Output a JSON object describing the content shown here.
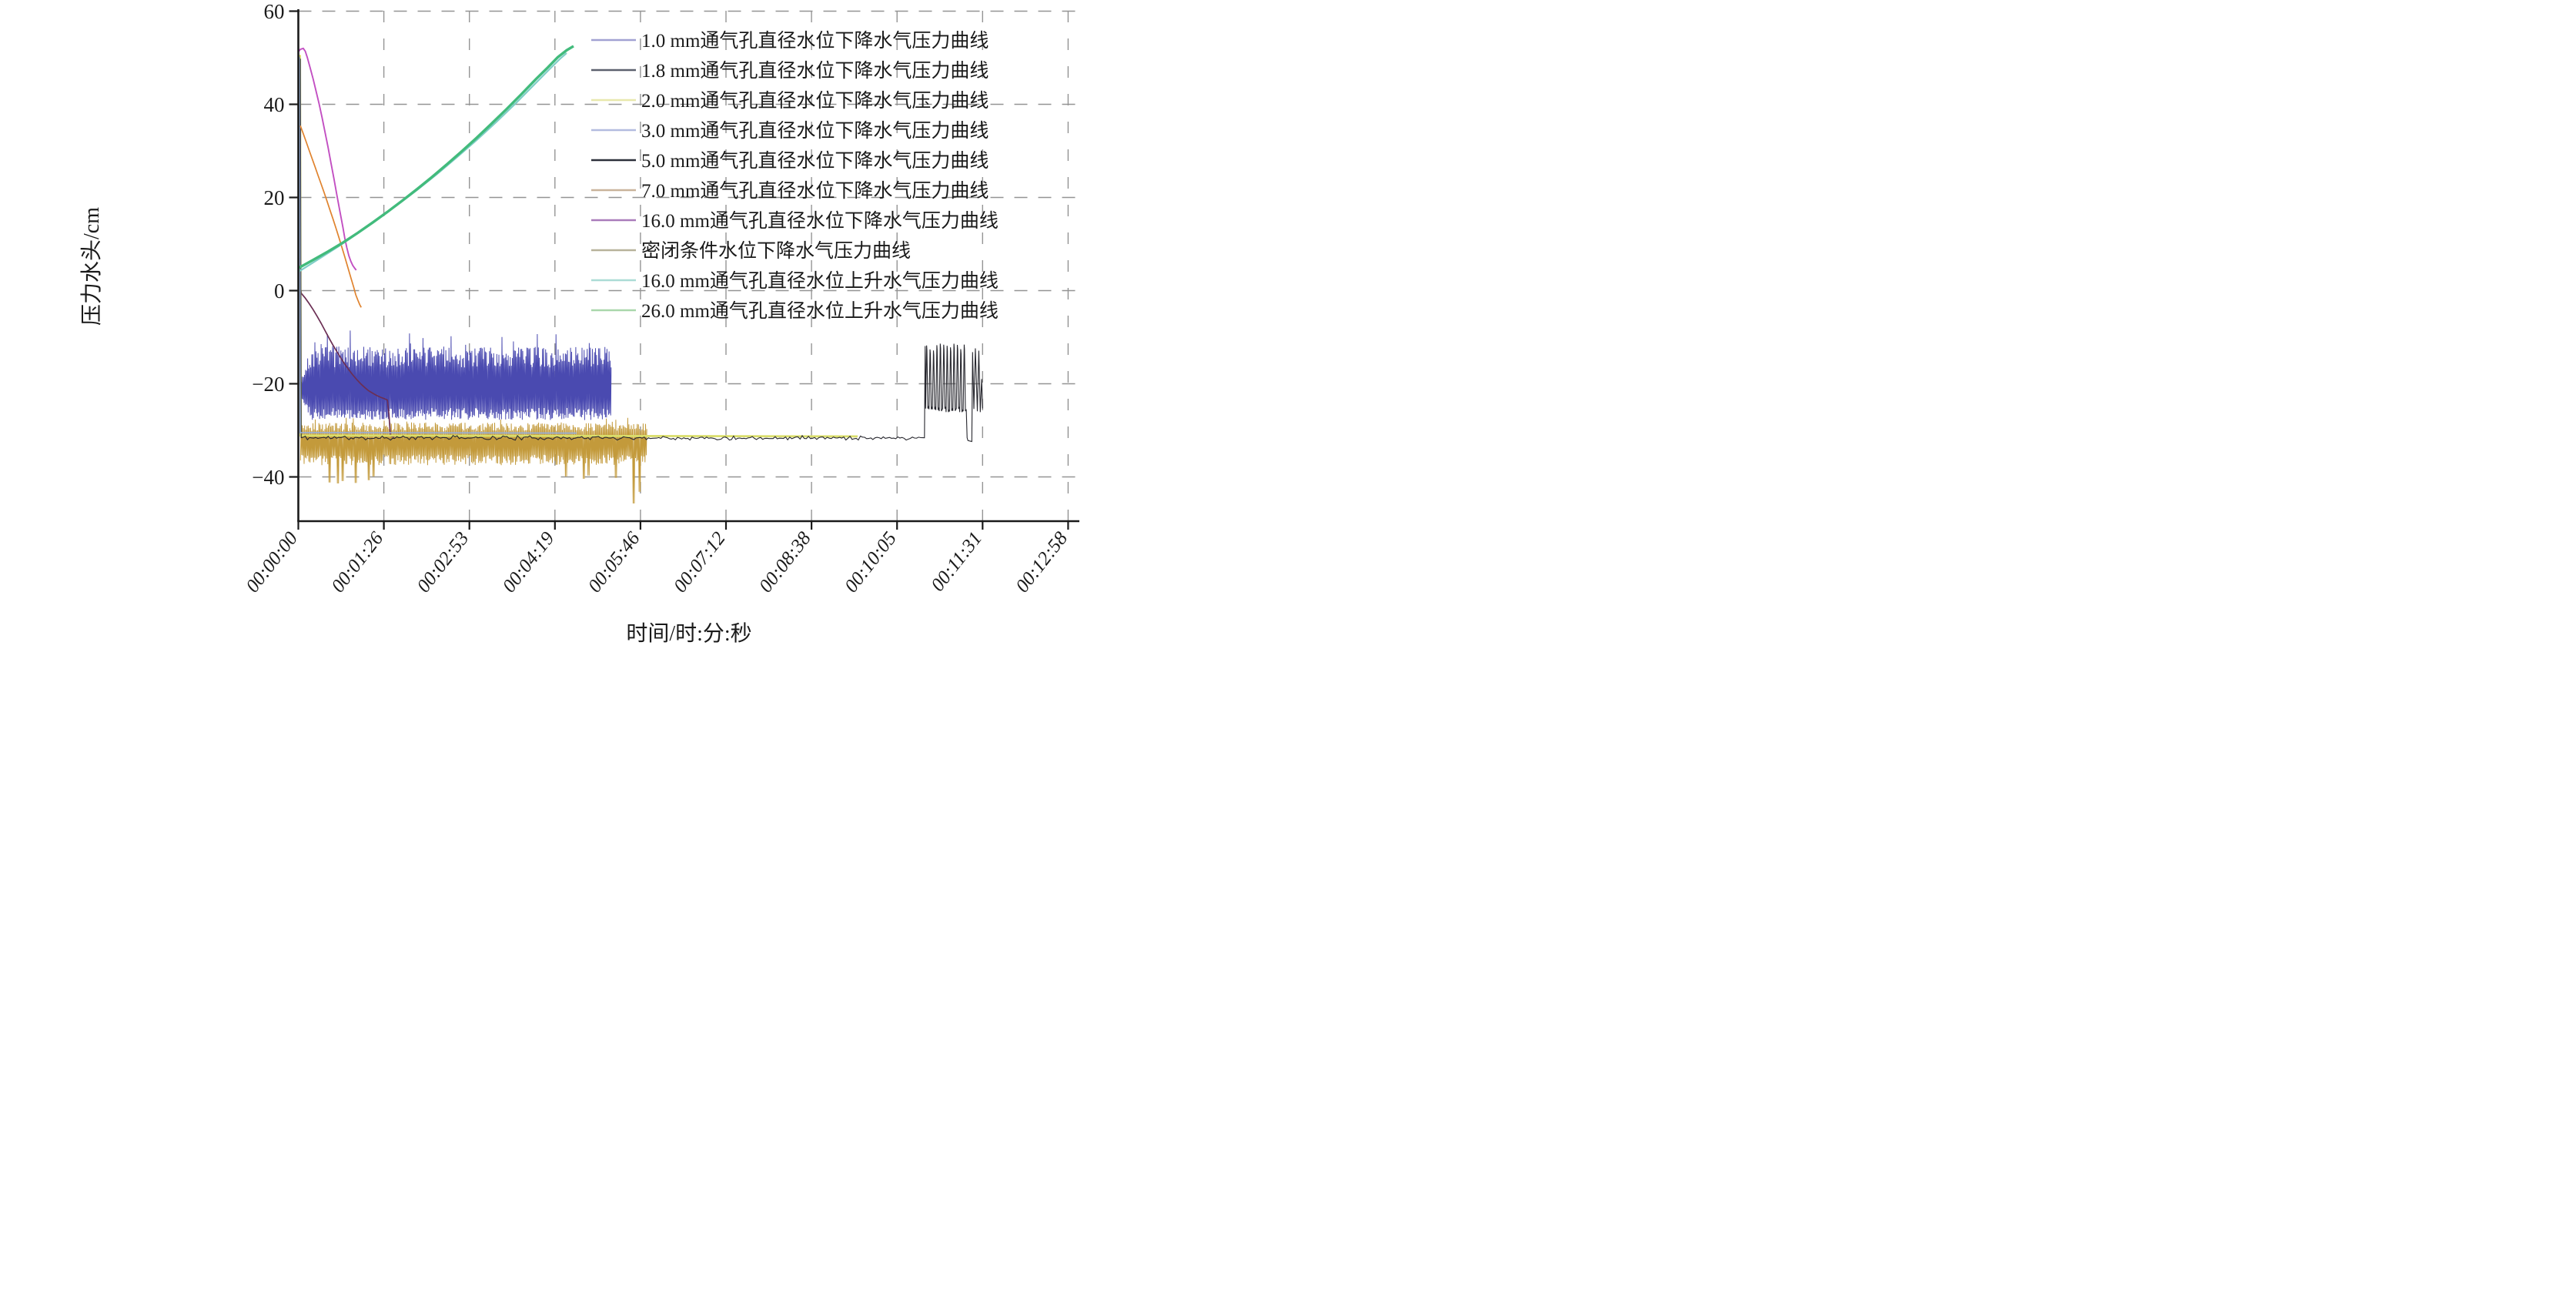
{
  "chart_data": {
    "type": "line",
    "title": "",
    "xlabel": "时间/时:分:秒",
    "ylabel": "压力水头/cm",
    "x_tick_seconds": [
      0,
      86.4,
      172.8,
      259.2,
      345.6,
      432,
      518.4,
      604.8,
      691.2,
      777.6
    ],
    "x_tick_labels": [
      "00:00:00",
      "00:01:26",
      "00:02:53",
      "00:04:19",
      "00:05:46",
      "00:07:12",
      "00:08:38",
      "00:10:05",
      "00:11:31",
      "00:12:58"
    ],
    "y_ticks": [
      60,
      40,
      20,
      0,
      -20,
      -40
    ],
    "y_tick_labels": [
      "60",
      "40",
      "20",
      "0",
      "−20",
      "−40"
    ],
    "ylim": [
      -48,
      62
    ],
    "xlim_seconds": [
      0,
      790
    ],
    "grid": "dashed-gray",
    "legend_position": "upper-right-inside",
    "grid_color": "#949494",
    "axis_color": "#1a1a1a",
    "series": [
      {
        "name": "1.0 mm通气孔直径水位下降水气压力曲线",
        "color": "#4a4ab0",
        "legend_color": "#a2a2d2",
        "width": 1.0,
        "description": "oscillating band, body -25..-13 cm, spikes -28..-9.5 cm, from 0 to ~00:05:16",
        "segments": [
          {
            "kind": "spike_band",
            "t0": 2.6,
            "t1": 316,
            "step": 1.05,
            "seed": 7,
            "bottom_base": -25.2,
            "bottom_var": 2.6,
            "top_base": -16.5,
            "top_var": 4.5,
            "tall_prob": 0.08,
            "tall_extra": 3.5,
            "ramp_until": 13,
            "ramp_center": -21
          }
        ]
      },
      {
        "name": "1.8 mm通气孔直径水位下降水气压力曲线",
        "color": "#6b2f54",
        "legend_color": "#5c616e",
        "width": 1.7,
        "description": "staircase descent 0 to -23 cm over ~90 s, then drop to -31.5 cm",
        "segments": [
          {
            "kind": "points",
            "points": [
              [
                1.3,
                7
              ],
              [
                1.9,
                0.8
              ],
              [
                3,
                -0.6
              ],
              [
                7,
                -1.6
              ],
              [
                11,
                -2.8
              ],
              [
                15,
                -4.1
              ],
              [
                19,
                -5.5
              ],
              [
                23,
                -7
              ],
              [
                27,
                -8.6
              ],
              [
                31,
                -10.2
              ],
              [
                35,
                -11.7
              ],
              [
                39,
                -13.1
              ],
              [
                43,
                -14.5
              ],
              [
                47,
                -15.8
              ],
              [
                51,
                -17
              ],
              [
                55,
                -18.1
              ],
              [
                59,
                -19.1
              ],
              [
                63,
                -20
              ],
              [
                67,
                -20.8
              ],
              [
                71,
                -21.5
              ],
              [
                75,
                -22
              ],
              [
                79,
                -22.5
              ],
              [
                83,
                -22.9
              ],
              [
                87,
                -23.2
              ],
              [
                90,
                -23.5
              ],
              [
                91.5,
                -26.5
              ],
              [
                93,
                -31.2
              ],
              [
                97,
                -31.5
              ]
            ]
          }
        ]
      },
      {
        "name": "2.0 mm通气孔直径水位下降水气压力曲线",
        "color": "#dade6b",
        "legend_color": "#e8e8ac",
        "width": 2.8,
        "description": "instant drop from ~50 cm to -31.3 cm, flat until ~00:09:25",
        "segments": [
          {
            "kind": "points",
            "points": [
              [
                1.6,
                50.6
              ],
              [
                2.4,
                -31.1
              ],
              [
                565,
                -31.3
              ]
            ]
          }
        ]
      },
      {
        "name": "3.0 mm通气孔直径水位下降水气压力曲线",
        "color": "#96add9",
        "legend_color": "#b3bcdf",
        "width": 1.7,
        "description": "instant drop from ~50 cm to -30.6 cm, flat until ~00:04:41",
        "segments": [
          {
            "kind": "points",
            "points": [
              [
                1.1,
                50.2
              ],
              [
                1.9,
                -30.5
              ],
              [
                281,
                -30.6
              ]
            ]
          }
        ]
      },
      {
        "name": "5.0 mm通气孔直径水位下降水气压力曲线",
        "color": "#27272e",
        "legend_color": "#2c303a",
        "width": 1.1,
        "description": "instant drop to -31.6 cm, noisy flat until ~00:10:33, then oscillation burst -26..-12 cm with dip to -32 cm, ends ~00:11:31",
        "segments": [
          {
            "kind": "points",
            "points": [
              [
                2.1,
                49.8
              ],
              [
                2.9,
                -31.5
              ]
            ]
          },
          {
            "kind": "jitter_line",
            "t0": 2.9,
            "t1": 632.5,
            "step": 2.1,
            "value": -31.6,
            "jitter": 0.5,
            "seed": 11
          },
          {
            "kind": "points",
            "points": [
              [
                632.5,
                -31.6
              ],
              [
                633.2,
                -11.9
              ]
            ]
          },
          {
            "kind": "square_osc",
            "t0": 633.2,
            "t1": 674.8,
            "period": 3.45,
            "top": -12.3,
            "top_var": 1.8,
            "bottom": -25.6,
            "bottom_var": 1.0,
            "seed": 5
          },
          {
            "kind": "points",
            "points": [
              [
                674.8,
                -26
              ],
              [
                675.6,
                -31.6
              ],
              [
                676.4,
                -32.2
              ],
              [
                680.3,
                -32.4
              ],
              [
                681.1,
                -13.2
              ],
              [
                682.4,
                -25.4
              ],
              [
                683.9,
                -12.4
              ],
              [
                685.9,
                -25.9
              ],
              [
                687.4,
                -12.9
              ],
              [
                688.9,
                -26.1
              ],
              [
                690.3,
                -19
              ],
              [
                691.3,
                -25.3
              ]
            ]
          }
        ]
      },
      {
        "name": "7.0 mm通气孔直径水位下降水气压力曲线",
        "color": "#e0832e",
        "legend_color": "#c9b39b",
        "width": 1.7,
        "description": "descent from ~35 cm to -3.6 cm over ~64 s",
        "segments": [
          {
            "kind": "points",
            "points": [
              [
                2,
                35.4
              ],
              [
                5,
                33.7
              ],
              [
                8,
                31.9
              ],
              [
                11,
                30.1
              ],
              [
                14,
                28.3
              ],
              [
                17,
                26.5
              ],
              [
                20,
                24.7
              ],
              [
                23,
                22.9
              ],
              [
                26,
                21.1
              ],
              [
                29,
                19.2
              ],
              [
                32,
                17.3
              ],
              [
                35,
                15.4
              ],
              [
                38,
                13.4
              ],
              [
                41,
                11.4
              ],
              [
                44,
                9.3
              ],
              [
                47,
                7.2
              ],
              [
                50,
                5
              ],
              [
                53,
                2.8
              ],
              [
                56,
                0.7
              ],
              [
                58,
                -0.9
              ],
              [
                60,
                -2
              ],
              [
                62,
                -3
              ],
              [
                63.5,
                -3.6
              ]
            ]
          }
        ]
      },
      {
        "name": "16.0 mm通气孔直径水位下降水气压力曲线",
        "color": "#c24fc2",
        "legend_color": "#a97cba",
        "width": 1.9,
        "description": "starts ~52 cm, descends to ~4.4 cm by ~58 s",
        "segments": [
          {
            "kind": "points",
            "points": [
              [
                0.6,
                51.4
              ],
              [
                2,
                51.8
              ],
              [
                5,
                52
              ],
              [
                7,
                51.4
              ],
              [
                9,
                50.1
              ],
              [
                12,
                47.8
              ],
              [
                15,
                45.4
              ],
              [
                18,
                42.8
              ],
              [
                21,
                40.1
              ],
              [
                24,
                37.1
              ],
              [
                27,
                34
              ],
              [
                30,
                30.8
              ],
              [
                33,
                27.4
              ],
              [
                36,
                24
              ],
              [
                39,
                20.5
              ],
              [
                42,
                17
              ],
              [
                45,
                13.6
              ],
              [
                47,
                11.2
              ],
              [
                49,
                9.2
              ],
              [
                51,
                7.5
              ],
              [
                53,
                6.3
              ],
              [
                55,
                5.4
              ],
              [
                57,
                4.8
              ],
              [
                58.5,
                4.4
              ]
            ]
          }
        ]
      },
      {
        "name": "密闭条件水位下降水气压力曲线",
        "color": "#c39a3b",
        "legend_color": "#b7b29a",
        "width": 1.0,
        "description": "oscillating band, body -37..-28.5 cm, spikes to -41 cm (30-76 s) and -45.7 cm (~00:05:39), from 0 to ~00:05:52",
        "segments": [
          {
            "kind": "spike_band",
            "t0": 2.2,
            "t1": 351.5,
            "step": 1.2,
            "seed": 13,
            "bottom_base": -35.2,
            "bottom_var": 2.3,
            "top_base": -30.2,
            "top_var": 1.9,
            "tall_prob": 0.05,
            "tall_extra": 1.2,
            "deep": [
              [
                31,
                -41.2
              ],
              [
                40.5,
                -41.4
              ],
              [
                45,
                -40.9
              ],
              [
                57.5,
                -41.3
              ],
              [
                71.5,
                -40.7
              ],
              [
                76,
                -39.9
              ],
              [
                270,
                -39.9
              ],
              [
                288,
                -40.4
              ],
              [
                293,
                -39.7
              ],
              [
                320.5,
                -40.2
              ],
              [
                339,
                -45.7
              ],
              [
                345,
                -43.2
              ]
            ]
          }
        ]
      },
      {
        "name": "16.0 mm通气孔直径水位上升水气压力曲线",
        "color": "#7fcdc7",
        "legend_color": "#abdcd6",
        "width": 2.2,
        "description": "rises from ~4 cm to ~51 cm between 0 and ~00:04:31",
        "segments": [
          {
            "kind": "points",
            "points": [
              [
                0.6,
                4.1
              ],
              [
                20,
                6.7
              ],
              [
                40,
                9.4
              ],
              [
                60,
                12.3
              ],
              [
                80,
                15.3
              ],
              [
                100,
                18.4
              ],
              [
                120,
                21.6
              ],
              [
                140,
                25
              ],
              [
                160,
                28.6
              ],
              [
                180,
                32.3
              ],
              [
                200,
                36.2
              ],
              [
                220,
                40.3
              ],
              [
                240,
                44.6
              ],
              [
                254,
                47.6
              ],
              [
                264,
                49.7
              ],
              [
                271,
                51
              ]
            ]
          }
        ]
      },
      {
        "name": "26.0 mm通气孔直径水位上升水气压力曲线",
        "color": "#42bb7c",
        "legend_color": "#a9d7ab",
        "width": 3.4,
        "description": "rises from ~5 cm to ~52.5 cm between 0 and ~00:04:38",
        "segments": [
          {
            "kind": "points",
            "points": [
              [
                0.6,
                4.9
              ],
              [
                15,
                6.6
              ],
              [
                30,
                8.4
              ],
              [
                45,
                10.3
              ],
              [
                60,
                12.4
              ],
              [
                75,
                14.6
              ],
              [
                90,
                16.9
              ],
              [
                105,
                19.3
              ],
              [
                120,
                21.8
              ],
              [
                135,
                24.4
              ],
              [
                150,
                27.1
              ],
              [
                165,
                29.9
              ],
              [
                180,
                32.8
              ],
              [
                195,
                35.8
              ],
              [
                210,
                38.9
              ],
              [
                225,
                42.1
              ],
              [
                240,
                45.4
              ],
              [
                252,
                47.9
              ],
              [
                262,
                50.1
              ],
              [
                271,
                51.6
              ],
              [
                278,
                52.5
              ]
            ]
          }
        ]
      }
    ]
  }
}
